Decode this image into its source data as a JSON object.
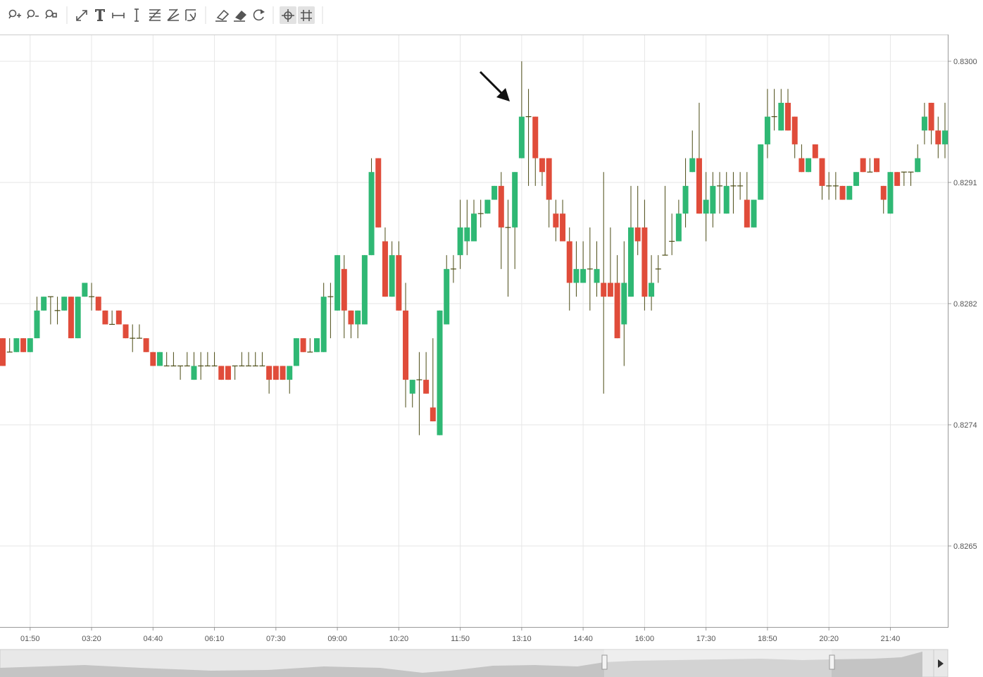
{
  "chart_data": {
    "type": "candlestick",
    "categories": [
      null,
      null,
      null,
      null,
      "01:50",
      null,
      null,
      null,
      null,
      null,
      null,
      null,
      null,
      "03:20",
      null,
      null,
      null,
      null,
      null,
      null,
      null,
      null,
      "04:40",
      null,
      null,
      null,
      null,
      null,
      null,
      null,
      null,
      "06:10",
      null,
      null,
      null,
      null,
      null,
      null,
      null,
      null,
      "07:30",
      null,
      null,
      null,
      null,
      null,
      null,
      null,
      null,
      "09:00",
      null,
      null,
      null,
      null,
      null,
      null,
      null,
      null,
      "10:20",
      null,
      null,
      null,
      null,
      null,
      null,
      null,
      null,
      "11:50",
      null,
      null,
      null,
      null,
      null,
      null,
      null,
      null,
      "13:10",
      null,
      null,
      null,
      null,
      null,
      null,
      null,
      null,
      "14:40",
      null,
      null,
      null,
      null,
      null,
      null,
      null,
      null,
      "16:00",
      null,
      null,
      null,
      null,
      null,
      null,
      null,
      null,
      "17:30",
      null,
      null,
      null,
      null,
      null,
      null,
      null,
      null,
      "18:50",
      null,
      null,
      null,
      null,
      null,
      null,
      null,
      null,
      "20:20",
      null,
      null,
      null,
      null,
      null,
      null,
      null,
      null,
      "21:40",
      null,
      null,
      null,
      null,
      null,
      null,
      null,
      null
    ],
    "open": [
      0.828,
      0.8279,
      0.8279,
      0.828,
      0.8279,
      0.828,
      0.8282,
      0.8283,
      0.8282,
      0.8282,
      0.8283,
      0.828,
      0.8283,
      0.8283,
      0.8283,
      0.8282,
      0.8281,
      0.8282,
      0.8281,
      0.828,
      0.828,
      0.828,
      0.8279,
      0.8278,
      0.8278,
      0.8278,
      0.8278,
      0.8278,
      0.8277,
      0.8278,
      0.8278,
      0.8278,
      0.8278,
      0.8278,
      0.8278,
      0.8278,
      0.8278,
      0.8278,
      0.8278,
      0.8278,
      0.8278,
      0.8278,
      0.8277,
      0.8278,
      0.828,
      0.8279,
      0.8279,
      0.8279,
      0.8283,
      0.8282,
      0.8285,
      0.8282,
      0.8281,
      0.8281,
      0.8286,
      0.8293,
      0.8287,
      0.8283,
      0.8286,
      0.8282,
      0.8276,
      0.8277,
      0.8277,
      0.8275,
      0.8273,
      0.8281,
      0.8285,
      0.8286,
      0.8287,
      0.8287,
      0.8289,
      0.8289,
      0.829,
      0.8291,
      0.8288,
      0.8288,
      0.8293,
      0.8296,
      0.8296,
      0.8293,
      0.8293,
      0.8289,
      0.8289,
      0.8287,
      0.8284,
      0.8284,
      0.8285,
      0.8284,
      0.8284,
      0.8284,
      0.8284,
      0.8281,
      0.8283,
      0.8288,
      0.8288,
      0.8283,
      0.8285,
      0.8286,
      0.8287,
      0.8287,
      0.8289,
      0.8292,
      0.8293,
      0.8289,
      0.8289,
      0.8291,
      0.8289,
      0.8291,
      0.8291,
      0.829,
      0.8288,
      0.829,
      0.8294,
      0.8296,
      0.8295,
      0.8297,
      0.8296,
      0.8293,
      0.8292,
      0.8294,
      0.8293,
      0.8291,
      0.8291,
      0.8291,
      0.829,
      0.8291,
      0.8293,
      0.8292,
      0.8293,
      0.8291,
      0.8289,
      0.8292,
      0.8292,
      0.8292,
      0.8292,
      0.8295,
      0.8297,
      0.8295,
      0.8294
    ],
    "high": [
      0.828,
      0.828,
      0.828,
      0.828,
      0.828,
      0.8283,
      0.8283,
      0.8283,
      0.8283,
      0.8283,
      0.8283,
      0.8283,
      0.8284,
      0.8284,
      0.8283,
      0.8282,
      0.8282,
      0.8282,
      0.8281,
      0.8281,
      0.8281,
      0.828,
      0.8279,
      0.8279,
      0.8279,
      0.8279,
      0.8278,
      0.8279,
      0.8279,
      0.8279,
      0.8279,
      0.8279,
      0.8278,
      0.8278,
      0.8278,
      0.8279,
      0.8279,
      0.8279,
      0.8279,
      0.8278,
      0.8278,
      0.8278,
      0.8278,
      0.828,
      0.828,
      0.828,
      0.828,
      0.8284,
      0.8284,
      0.8286,
      0.8286,
      0.8282,
      0.8282,
      0.8286,
      0.8293,
      0.8293,
      0.8288,
      0.8287,
      0.8287,
      0.8284,
      0.8277,
      0.8279,
      0.8279,
      0.828,
      0.8282,
      0.8286,
      0.8286,
      0.829,
      0.829,
      0.829,
      0.829,
      0.829,
      0.8291,
      0.8292,
      0.829,
      0.8292,
      0.83,
      0.8298,
      0.8296,
      0.8293,
      0.8293,
      0.829,
      0.829,
      0.8288,
      0.8287,
      0.8287,
      0.8288,
      0.8287,
      0.8292,
      0.8288,
      0.8286,
      0.8287,
      0.8291,
      0.8291,
      0.829,
      0.8286,
      0.8286,
      0.8291,
      0.8289,
      0.829,
      0.8293,
      0.8295,
      0.8297,
      0.8292,
      0.8292,
      0.8292,
      0.8292,
      0.8292,
      0.8292,
      0.8292,
      0.829,
      0.8294,
      0.8298,
      0.8298,
      0.8298,
      0.8298,
      0.8296,
      0.8294,
      0.8293,
      0.8294,
      0.8293,
      0.8292,
      0.8292,
      0.8291,
      0.8291,
      0.8292,
      0.8293,
      0.8293,
      0.8293,
      0.8291,
      0.8292,
      0.8292,
      0.8292,
      0.8292,
      0.8294,
      0.8297,
      0.8297,
      0.8296,
      0.8297
    ],
    "low": [
      0.8278,
      0.8279,
      0.8279,
      0.8279,
      0.8279,
      0.828,
      0.8282,
      0.8281,
      0.8281,
      0.8282,
      0.828,
      0.828,
      0.8283,
      0.8282,
      0.8282,
      0.8281,
      0.8281,
      0.8281,
      0.828,
      0.8279,
      0.828,
      0.8279,
      0.8278,
      0.8278,
      0.8278,
      0.8278,
      0.8277,
      0.8278,
      0.8277,
      0.8277,
      0.8278,
      0.8278,
      0.8277,
      0.8277,
      0.8277,
      0.8278,
      0.8278,
      0.8278,
      0.8278,
      0.8276,
      0.8277,
      0.8277,
      0.8276,
      0.8278,
      0.8279,
      0.8279,
      0.8279,
      0.8279,
      0.828,
      0.8282,
      0.828,
      0.828,
      0.828,
      0.8281,
      0.8286,
      0.8288,
      0.8283,
      0.8283,
      0.8282,
      0.8275,
      0.8275,
      0.8273,
      0.8276,
      0.8274,
      0.8273,
      0.8281,
      0.8284,
      0.8285,
      0.8286,
      0.8287,
      0.8288,
      0.8289,
      0.829,
      0.8285,
      0.8283,
      0.8285,
      0.8293,
      0.8291,
      0.8291,
      0.8291,
      0.8288,
      0.8287,
      0.8287,
      0.8282,
      0.8283,
      0.8284,
      0.8282,
      0.8283,
      0.8276,
      0.8283,
      0.828,
      0.8278,
      0.8283,
      0.8286,
      0.8282,
      0.8282,
      0.8284,
      0.8286,
      0.8286,
      0.8287,
      0.8288,
      0.8292,
      0.8289,
      0.8287,
      0.8288,
      0.8289,
      0.8289,
      0.8289,
      0.829,
      0.8288,
      0.8288,
      0.829,
      0.8293,
      0.8295,
      0.8295,
      0.8295,
      0.8293,
      0.8292,
      0.8292,
      0.8293,
      0.829,
      0.829,
      0.829,
      0.829,
      0.829,
      0.8291,
      0.8292,
      0.8292,
      0.8292,
      0.8289,
      0.8289,
      0.8291,
      0.8291,
      0.8291,
      0.8292,
      0.8294,
      0.8294,
      0.8293,
      0.8293
    ],
    "close": [
      0.8278,
      0.8279,
      0.828,
      0.8279,
      0.828,
      0.8282,
      0.8283,
      0.8283,
      0.8282,
      0.8283,
      0.828,
      0.8283,
      0.8284,
      0.8283,
      0.8282,
      0.8281,
      0.8281,
      0.8281,
      0.828,
      0.828,
      0.828,
      0.8279,
      0.8278,
      0.8279,
      0.8278,
      0.8278,
      0.8278,
      0.8278,
      0.8278,
      0.8278,
      0.8278,
      0.8278,
      0.8277,
      0.8277,
      0.8278,
      0.8278,
      0.8278,
      0.8278,
      0.8278,
      0.8277,
      0.8277,
      0.8277,
      0.8278,
      0.828,
      0.8279,
      0.8279,
      0.828,
      0.8283,
      0.8283,
      0.8286,
      0.8282,
      0.8281,
      0.8282,
      0.8286,
      0.8292,
      0.8288,
      0.8283,
      0.8286,
      0.8282,
      0.8277,
      0.8277,
      0.8277,
      0.8276,
      0.8274,
      0.8282,
      0.8285,
      0.8285,
      0.8288,
      0.8288,
      0.8289,
      0.8289,
      0.829,
      0.8291,
      0.8288,
      0.8288,
      0.8292,
      0.8296,
      0.8296,
      0.8293,
      0.8292,
      0.829,
      0.8288,
      0.8287,
      0.8284,
      0.8285,
      0.8285,
      0.8285,
      0.8285,
      0.8283,
      0.8283,
      0.828,
      0.8284,
      0.8288,
      0.8287,
      0.8283,
      0.8284,
      0.8285,
      0.8286,
      0.8287,
      0.8289,
      0.8291,
      0.8293,
      0.8289,
      0.829,
      0.8291,
      0.8291,
      0.8291,
      0.8291,
      0.8291,
      0.8288,
      0.829,
      0.8294,
      0.8296,
      0.8296,
      0.8297,
      0.8295,
      0.8294,
      0.8292,
      0.8293,
      0.8293,
      0.8291,
      0.8291,
      0.8291,
      0.829,
      0.8291,
      0.8292,
      0.8292,
      0.8292,
      0.8292,
      0.829,
      0.8292,
      0.8291,
      0.8292,
      0.8292,
      0.8293,
      0.8296,
      0.8295,
      0.8294,
      0.8295
    ],
    "up_color": "#2fb874",
    "down_color": "#e04c3a",
    "wick_color": "#4b4b14",
    "ylim": [
      0.825915,
      0.830188
    ],
    "yticks": [
      {
        "value": 0.83,
        "label": "0.8300"
      },
      {
        "value": 0.829125,
        "label": "0.8291"
      },
      {
        "value": 0.82825,
        "label": "0.8282"
      },
      {
        "value": 0.827375,
        "label": "0.8274"
      },
      {
        "value": 0.8265,
        "label": "0.8265"
      }
    ],
    "grid": true
  }
}
